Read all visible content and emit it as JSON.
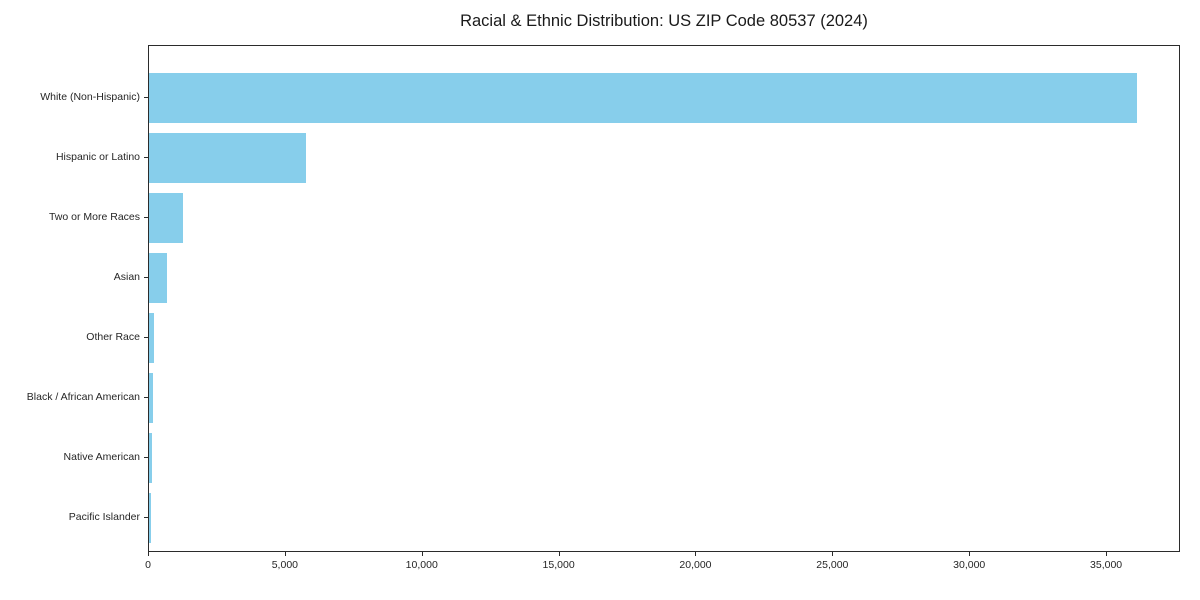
{
  "chart_data": {
    "type": "bar",
    "orientation": "horizontal",
    "title": "Racial & Ethnic Distribution: US ZIP Code 80537 (2024)",
    "categories": [
      "White (Non-Hispanic)",
      "Hispanic or Latino",
      "Two or More Races",
      "Asian",
      "Other Race",
      "Black / African American",
      "Native American",
      "Pacific Islander"
    ],
    "values": [
      36100,
      5750,
      1250,
      650,
      180,
      140,
      100,
      60
    ],
    "xlabel": "",
    "ylabel": "",
    "xlim": [
      0,
      37700
    ],
    "xticks": [
      0,
      5000,
      10000,
      15000,
      20000,
      25000,
      30000,
      35000
    ],
    "xtick_labels": [
      "0",
      "5,000",
      "10,000",
      "15,000",
      "20,000",
      "25,000",
      "30,000",
      "35,000"
    ],
    "bar_color": "#87CEEB",
    "background": "#FFFFFF",
    "grid": false,
    "legend": null
  }
}
